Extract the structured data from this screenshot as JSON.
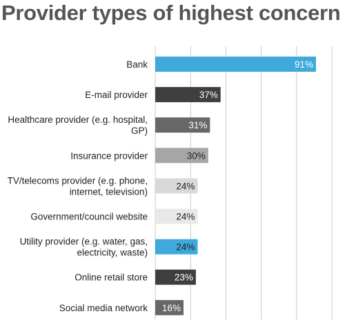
{
  "chart_data": {
    "type": "bar",
    "orientation": "horizontal",
    "title": "Provider types of highest concern",
    "xlabel": "",
    "ylabel": "",
    "xlim": [
      0,
      100
    ],
    "grid": true,
    "legend": "none",
    "categories": [
      [
        "Bank"
      ],
      [
        "E-mail provider"
      ],
      [
        "Healthcare provider (e.g. hospital,",
        "GP)"
      ],
      [
        "Insurance provider"
      ],
      [
        "TV/telecoms provider (e.g. phone,",
        "internet, television)"
      ],
      [
        "Government/council website"
      ],
      [
        "Utility provider (e.g. water, gas,",
        "electricity, waste)"
      ],
      [
        "Online retail store"
      ],
      [
        "Social media network"
      ]
    ],
    "values": [
      91,
      37,
      31,
      30,
      24,
      24,
      24,
      23,
      16
    ],
    "value_labels": [
      "91%",
      "37%",
      "31%",
      "30%",
      "24%",
      "24%",
      "24%",
      "23%",
      "16%"
    ],
    "bar_colors": [
      "#3fa9dc",
      "#3f3f3f",
      "#676767",
      "#a6a6a6",
      "#d9d9d9",
      "#e8e8e8",
      "#3fa9dc",
      "#3f3f3f",
      "#676767"
    ],
    "label_colors": [
      "#ffffff",
      "#ffffff",
      "#ffffff",
      "#222222",
      "#222222",
      "#222222",
      "#222222",
      "#ffffff",
      "#ffffff"
    ],
    "grid_color": "#c8c8c8"
  }
}
